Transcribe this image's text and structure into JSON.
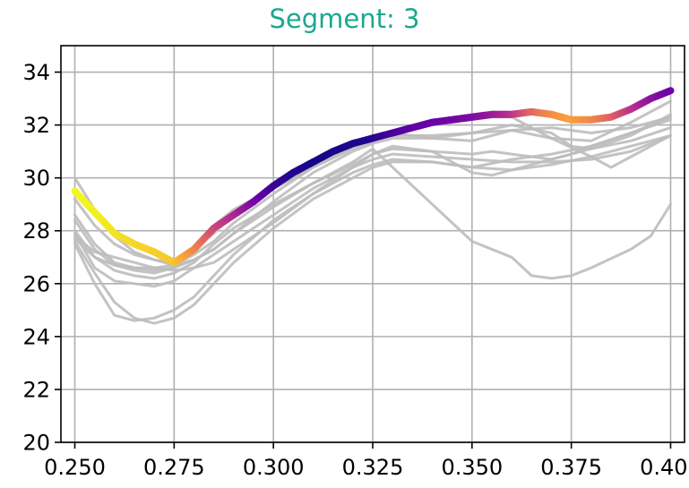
{
  "chart_data": {
    "type": "line",
    "title": "Segment: 3",
    "xlabel": "",
    "ylabel": "",
    "xlim": [
      0.2465,
      0.4035
    ],
    "ylim": [
      20,
      35
    ],
    "xticks": [
      0.25,
      0.275,
      0.3,
      0.325,
      0.35,
      0.375,
      0.4
    ],
    "xtick_labels": [
      "0.250",
      "0.275",
      "0.300",
      "0.325",
      "0.350",
      "0.375",
      "0.400"
    ],
    "yticks": [
      20,
      22,
      24,
      26,
      28,
      30,
      32,
      34
    ],
    "ytick_labels": [
      "20",
      "22",
      "24",
      "26",
      "28",
      "30",
      "32",
      "34"
    ],
    "grid": true,
    "colors": {
      "title": "#1aa88f",
      "grid": "#b0b0b0",
      "background_series": "#bdbdbd",
      "highlight_colormap": [
        "#0d0887",
        "#6a00a8",
        "#b12a90",
        "#e16462",
        "#fca636",
        "#f0f921"
      ]
    },
    "background_series": [
      {
        "x": [
          0.25,
          0.255,
          0.26,
          0.265,
          0.27,
          0.275,
          0.28,
          0.285,
          0.29,
          0.3,
          0.31,
          0.32,
          0.325,
          0.33,
          0.34,
          0.35,
          0.355,
          0.36,
          0.37,
          0.38,
          0.39,
          0.4
        ],
        "y": [
          30.0,
          28.8,
          27.8,
          27.2,
          26.9,
          26.8,
          27.4,
          28.2,
          28.8,
          29.6,
          30.4,
          31.1,
          31.4,
          31.7,
          32.0,
          32.2,
          32.3,
          32.3,
          31.5,
          31.4,
          32.1,
          32.9
        ]
      },
      {
        "x": [
          0.25,
          0.255,
          0.26,
          0.265,
          0.27,
          0.275,
          0.28,
          0.285,
          0.29,
          0.3,
          0.31,
          0.32,
          0.325,
          0.33,
          0.34,
          0.35,
          0.36,
          0.37,
          0.375,
          0.38,
          0.39,
          0.4
        ],
        "y": [
          29.2,
          28.2,
          27.5,
          27.1,
          26.9,
          26.7,
          27.1,
          27.6,
          28.3,
          29.4,
          30.4,
          31.3,
          31.6,
          31.7,
          31.5,
          31.7,
          32.0,
          31.7,
          31.2,
          31.1,
          31.6,
          32.4
        ]
      },
      {
        "x": [
          0.25,
          0.255,
          0.26,
          0.265,
          0.27,
          0.275,
          0.28,
          0.285,
          0.29,
          0.3,
          0.31,
          0.32,
          0.325,
          0.33,
          0.34,
          0.35,
          0.36,
          0.37,
          0.38,
          0.39,
          0.4
        ],
        "y": [
          28.6,
          27.5,
          26.8,
          26.6,
          26.5,
          26.6,
          26.9,
          27.3,
          27.9,
          29.1,
          30.2,
          31.0,
          31.3,
          31.5,
          31.5,
          31.4,
          31.8,
          31.9,
          31.7,
          31.9,
          32.3
        ]
      },
      {
        "x": [
          0.25,
          0.255,
          0.26,
          0.265,
          0.27,
          0.275,
          0.28,
          0.285,
          0.29,
          0.3,
          0.31,
          0.32,
          0.325,
          0.33,
          0.34,
          0.35,
          0.36,
          0.37,
          0.38,
          0.385,
          0.39,
          0.4
        ],
        "y": [
          28.4,
          27.3,
          26.7,
          26.5,
          26.4,
          26.6,
          27.3,
          27.9,
          28.6,
          29.6,
          30.4,
          31.2,
          31.5,
          31.6,
          31.6,
          31.7,
          31.8,
          31.5,
          30.8,
          30.4,
          30.8,
          31.6
        ]
      },
      {
        "x": [
          0.25,
          0.255,
          0.26,
          0.265,
          0.27,
          0.275,
          0.28,
          0.285,
          0.29,
          0.3,
          0.31,
          0.32,
          0.325,
          0.33,
          0.34,
          0.35,
          0.36,
          0.37,
          0.38,
          0.39,
          0.4
        ],
        "y": [
          27.9,
          26.6,
          26.1,
          26.0,
          25.9,
          26.1,
          26.6,
          27.1,
          27.6,
          28.6,
          29.6,
          30.4,
          30.7,
          30.9,
          30.8,
          30.7,
          30.6,
          30.6,
          30.7,
          31.0,
          31.6
        ]
      },
      {
        "x": [
          0.25,
          0.255,
          0.26,
          0.265,
          0.27,
          0.275,
          0.28,
          0.285,
          0.29,
          0.3,
          0.31,
          0.32,
          0.325,
          0.33,
          0.34,
          0.35,
          0.36,
          0.37,
          0.38,
          0.39,
          0.4
        ],
        "y": [
          27.6,
          26.4,
          25.3,
          24.7,
          24.5,
          24.7,
          25.2,
          26.0,
          26.8,
          28.1,
          29.2,
          30.0,
          30.4,
          30.6,
          30.6,
          30.4,
          30.3,
          30.5,
          30.8,
          31.2,
          31.6
        ]
      },
      {
        "x": [
          0.25,
          0.255,
          0.26,
          0.265,
          0.27,
          0.275,
          0.28,
          0.285,
          0.29,
          0.3,
          0.31,
          0.32,
          0.325,
          0.33,
          0.34,
          0.35,
          0.36,
          0.37,
          0.38,
          0.39,
          0.4
        ],
        "y": [
          27.5,
          26.0,
          24.8,
          24.6,
          24.7,
          25.0,
          25.5,
          26.3,
          27.1,
          28.4,
          29.4,
          30.2,
          30.5,
          30.7,
          30.6,
          30.4,
          30.7,
          30.9,
          31.2,
          31.7,
          32.2
        ]
      },
      {
        "x": [
          0.25,
          0.255,
          0.26,
          0.265,
          0.27,
          0.275,
          0.28,
          0.285,
          0.29,
          0.3,
          0.31,
          0.32,
          0.325,
          0.33,
          0.34,
          0.35,
          0.355,
          0.36,
          0.365,
          0.37,
          0.375,
          0.38,
          0.39,
          0.4
        ],
        "y": [
          27.8,
          27.2,
          27.0,
          26.8,
          26.6,
          26.5,
          26.6,
          26.8,
          27.3,
          28.3,
          29.4,
          30.4,
          30.9,
          31.1,
          31.0,
          30.9,
          31.0,
          30.9,
          30.8,
          30.7,
          30.9,
          31.1,
          31.4,
          31.9
        ]
      },
      {
        "x": [
          0.25,
          0.255,
          0.26,
          0.265,
          0.27,
          0.275,
          0.28,
          0.285,
          0.29,
          0.3,
          0.31,
          0.32,
          0.325,
          0.33,
          0.34,
          0.35,
          0.355,
          0.36,
          0.365,
          0.37,
          0.375,
          0.38,
          0.39,
          0.395,
          0.4
        ],
        "y": [
          28.0,
          27.0,
          26.5,
          26.3,
          26.2,
          26.4,
          26.8,
          27.5,
          28.1,
          29.0,
          29.8,
          30.5,
          30.9,
          31.2,
          31.0,
          30.2,
          30.1,
          30.3,
          30.5,
          30.7,
          30.9,
          31.2,
          31.7,
          32.0,
          32.3
        ]
      },
      {
        "x": [
          0.25,
          0.255,
          0.26,
          0.265,
          0.27,
          0.275,
          0.28,
          0.285,
          0.29,
          0.3,
          0.31,
          0.32,
          0.325,
          0.33,
          0.34,
          0.35,
          0.36,
          0.365,
          0.37,
          0.375,
          0.38,
          0.39,
          0.395,
          0.4
        ],
        "y": [
          27.7,
          27.0,
          26.7,
          26.6,
          26.6,
          26.7,
          26.9,
          27.3,
          27.9,
          28.9,
          29.8,
          30.6,
          31.1,
          30.4,
          29.0,
          27.6,
          27.0,
          26.3,
          26.2,
          26.3,
          26.6,
          27.3,
          27.8,
          29.0
        ]
      }
    ],
    "highlight_series": {
      "x": [
        0.25,
        0.255,
        0.26,
        0.265,
        0.27,
        0.275,
        0.28,
        0.285,
        0.29,
        0.295,
        0.3,
        0.305,
        0.31,
        0.315,
        0.32,
        0.325,
        0.33,
        0.335,
        0.34,
        0.345,
        0.35,
        0.355,
        0.36,
        0.365,
        0.37,
        0.375,
        0.38,
        0.385,
        0.39,
        0.395,
        0.4
      ],
      "y": [
        29.5,
        28.7,
        27.9,
        27.5,
        27.2,
        26.8,
        27.3,
        28.1,
        28.6,
        29.1,
        29.7,
        30.2,
        30.6,
        31.0,
        31.3,
        31.5,
        31.7,
        31.9,
        32.1,
        32.2,
        32.3,
        32.4,
        32.4,
        32.5,
        32.4,
        32.2,
        32.2,
        32.3,
        32.6,
        33.0,
        33.3
      ],
      "color_value": [
        1.0,
        0.98,
        0.95,
        0.92,
        0.9,
        0.88,
        0.72,
        0.52,
        0.4,
        0.25,
        0.1,
        0.05,
        0.02,
        0.02,
        0.03,
        0.05,
        0.12,
        0.18,
        0.2,
        0.22,
        0.25,
        0.32,
        0.42,
        0.6,
        0.72,
        0.78,
        0.72,
        0.6,
        0.45,
        0.3,
        0.2
      ]
    }
  }
}
